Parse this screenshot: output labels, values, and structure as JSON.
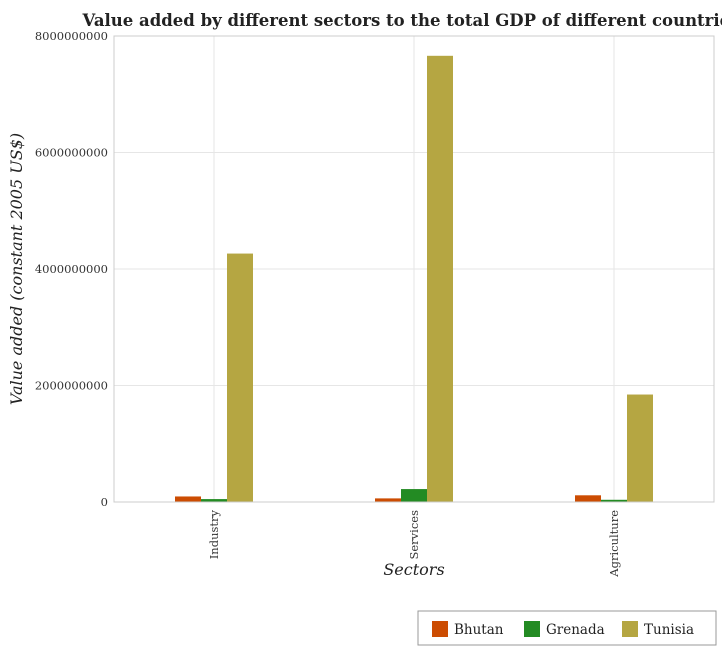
{
  "chart_data": {
    "type": "bar",
    "title": "Value added by different sectors to the total GDP of different countries",
    "xlabel": "Sectors",
    "ylabel": "Value added (constant 2005 US$)",
    "categories": [
      "Industry",
      "Services",
      "Agriculture"
    ],
    "series": [
      {
        "name": "Bhutan",
        "color": "#cc4c02",
        "values": [
          95000000,
          62000000,
          115000000
        ]
      },
      {
        "name": "Grenada",
        "color": "#238b23",
        "values": [
          50000000,
          222000000,
          38000000
        ]
      },
      {
        "name": "Tunisia",
        "color": "#b5a642",
        "values": [
          4265000000,
          7660000000,
          1845000000
        ]
      }
    ],
    "ylim": [
      0,
      8000000000
    ],
    "yticks": [
      0,
      2000000000,
      4000000000,
      6000000000,
      8000000000
    ],
    "ytick_labels": [
      "0",
      "2000000000",
      "4000000000",
      "6000000000",
      "8000000000"
    ],
    "grid": true,
    "legend_position": "bottom-right"
  }
}
